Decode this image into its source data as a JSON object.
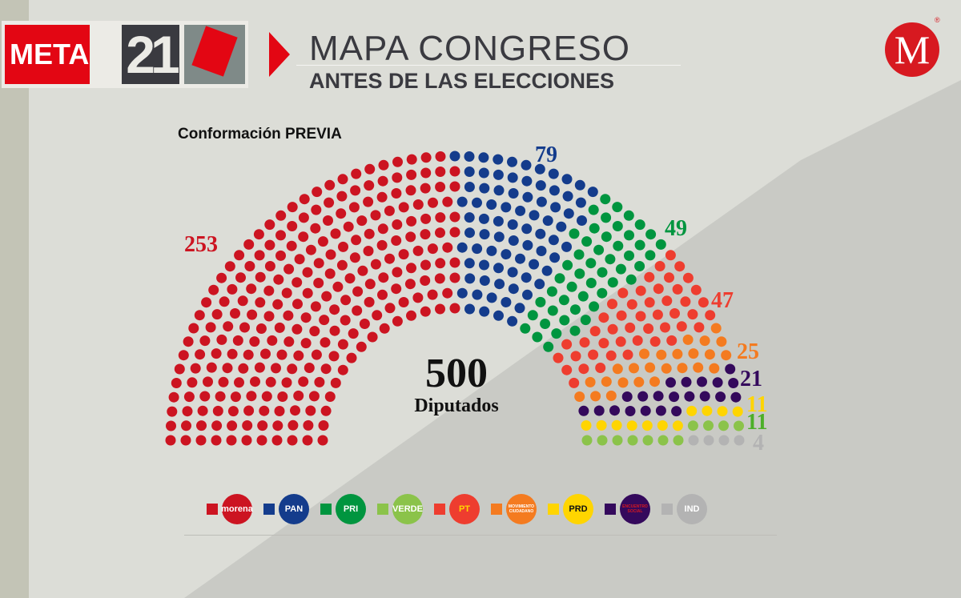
{
  "header": {
    "brand_meta": "META",
    "brand_21": "21",
    "title": "MAPA CONGRESO",
    "subtitle": "ANTES DE LAS ELECCIONES",
    "publisher_logo": "M"
  },
  "chart_data": {
    "type": "parliament",
    "title": "Conformación PREVIA",
    "total": "500",
    "total_label": "Diputados",
    "series": [
      {
        "name": "morena",
        "value": 253,
        "color": "#cc1421"
      },
      {
        "name": "PAN",
        "value": 79,
        "color": "#143c8c"
      },
      {
        "name": "PRI",
        "value": 49,
        "color": "#00953f"
      },
      {
        "name": "PT",
        "value": 47,
        "color": "#ee3d2f"
      },
      {
        "name": "MOVIMIENTO CIUDADANO",
        "value": 25,
        "color": "#f47b20"
      },
      {
        "name": "ENCUENTRO SOCIAL",
        "value": 21,
        "color": "#34095c"
      },
      {
        "name": "PRD",
        "value": 11,
        "color": "#ffd500"
      },
      {
        "name": "VERDE",
        "value": 11,
        "color": "#8bc34a"
      },
      {
        "name": "IND",
        "value": 4,
        "color": "#b3b3b3"
      }
    ],
    "labels": [
      "253",
      "79",
      "49",
      "47",
      "25",
      "21",
      "11",
      "11",
      "4"
    ]
  },
  "legend": [
    {
      "label": "morena",
      "color": "#cc1421",
      "text_color": "#fff"
    },
    {
      "label": "PAN",
      "color": "#143c8c",
      "text_color": "#fff"
    },
    {
      "label": "PRI",
      "color": "#00953f",
      "text_color": "#fff"
    },
    {
      "label": "VERDE",
      "color": "#8bc34a",
      "text_color": "#fff"
    },
    {
      "label": "PT",
      "color": "#ee3d2f",
      "text_color": "#ffd500"
    },
    {
      "label": "MOVIMIENTO CIUDADANO",
      "color": "#f47b20",
      "text_color": "#fff"
    },
    {
      "label": "PRD",
      "color": "#ffd500",
      "text_color": "#111"
    },
    {
      "label": "ENCUENTRO SOCIAL",
      "color": "#34095c",
      "text_color": "#d71920"
    },
    {
      "label": "IND",
      "color": "#b3b3b3",
      "text_color": "#fff"
    }
  ]
}
